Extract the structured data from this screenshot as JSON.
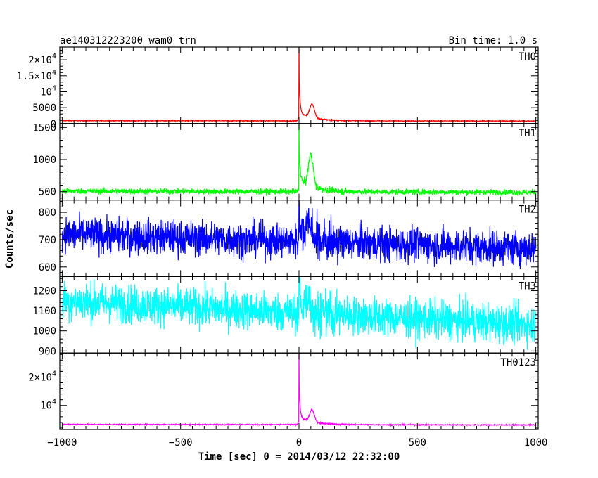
{
  "chart_data": {
    "type": "line",
    "title": "ae140312223200_wam0_trn",
    "bin_time_label": "Bin time: 1.0 s",
    "xlabel": "Time [sec] 0 = 2014/03/12 22:32:00",
    "ylabel": "Counts/sec",
    "xlim": [
      -1010,
      1010
    ],
    "x_ticks": [
      -1000,
      -500,
      0,
      500,
      1000
    ],
    "x_tick_labels": [
      "−1000",
      "−500",
      "0",
      "500",
      "1000"
    ],
    "panels": [
      {
        "name": "TH0",
        "color": "#ff0000",
        "ylim": [
          0,
          24000
        ],
        "y_ticks": [
          0,
          5000,
          10000,
          15000,
          20000
        ],
        "y_tick_labels": [
          {
            "mant": "0",
            "exp": ""
          },
          {
            "mant": "5000",
            "exp": ""
          },
          {
            "mant": "10",
            "exp": "4"
          },
          {
            "mant": "1.5×10",
            "exp": "4"
          },
          {
            "mant": "2×10",
            "exp": "4"
          }
        ],
        "baseline": 900,
        "baseline_end": 800,
        "noise": 60,
        "peak": 24000,
        "bump": 4200,
        "bump_t": 55,
        "tail": 2600
      },
      {
        "name": "TH1",
        "color": "#00ff00",
        "ylim": [
          370,
          1560
        ],
        "y_ticks": [
          500,
          1000,
          1500
        ],
        "y_tick_labels": [
          {
            "mant": "500",
            "exp": ""
          },
          {
            "mant": "1000",
            "exp": ""
          },
          {
            "mant": "1500",
            "exp": ""
          }
        ],
        "baseline": 510,
        "baseline_end": 490,
        "noise": 22,
        "peak": 1560,
        "bump": 500,
        "bump_t": 50,
        "tail": 200
      },
      {
        "name": "TH2",
        "color": "#0000ff",
        "ylim": [
          565,
          845
        ],
        "y_ticks": [
          600,
          700,
          800
        ],
        "y_tick_labels": [
          {
            "mant": "600",
            "exp": ""
          },
          {
            "mant": "700",
            "exp": ""
          },
          {
            "mant": "800",
            "exp": ""
          }
        ],
        "baseline": 720,
        "baseline_end": 668,
        "noise": 32,
        "peak": 845,
        "bump": 60,
        "bump_t": 40,
        "tail": 40
      },
      {
        "name": "TH3",
        "color": "#00ffff",
        "ylim": [
          890,
          1270
        ],
        "y_ticks": [
          900,
          1000,
          1100,
          1200
        ],
        "y_tick_labels": [
          {
            "mant": "900",
            "exp": ""
          },
          {
            "mant": "1000",
            "exp": ""
          },
          {
            "mant": "1100",
            "exp": ""
          },
          {
            "mant": "1200",
            "exp": ""
          }
        ],
        "baseline": 1150,
        "baseline_end": 1030,
        "noise": 48,
        "peak": 1270,
        "bump": 40,
        "bump_t": 40,
        "tail": 40
      },
      {
        "name": "TH0123",
        "color": "#ff00ff",
        "ylim": [
          1500,
          28500
        ],
        "y_ticks": [
          10000,
          20000
        ],
        "y_tick_labels": [
          {
            "mant": "10",
            "exp": "4"
          },
          {
            "mant": "2×10",
            "exp": "4"
          }
        ],
        "baseline": 3300,
        "baseline_end": 3100,
        "noise": 90,
        "peak": 28500,
        "bump": 4200,
        "bump_t": 55,
        "tail": 2600
      }
    ]
  }
}
